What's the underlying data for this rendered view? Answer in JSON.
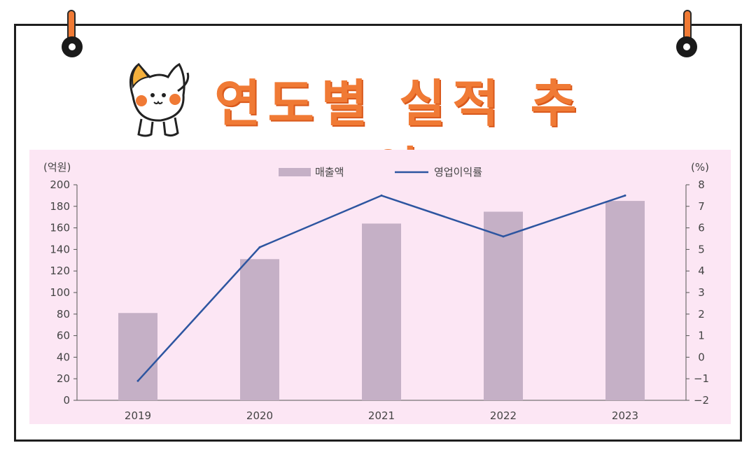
{
  "title": "연도별 실적 추이",
  "colors": {
    "accent": "#f07a35",
    "bar": "#c5b0c6",
    "line": "#2d55a0",
    "panel": "#fce6f4"
  },
  "chart_data": {
    "type": "bar",
    "categories": [
      "2019",
      "2020",
      "2021",
      "2022",
      "2023"
    ],
    "series": [
      {
        "name": "매출액",
        "type": "bar",
        "axis": "left",
        "values": [
          81,
          131,
          164,
          175,
          185
        ]
      },
      {
        "name": "영업이익률",
        "type": "line",
        "axis": "right",
        "values": [
          -1.1,
          5.1,
          7.5,
          5.6,
          7.5
        ]
      }
    ],
    "ylabel_left": "(억원)",
    "ylabel_right": "(%)",
    "ylim_left": [
      0,
      200
    ],
    "ylim_right": [
      -2,
      8
    ],
    "yticks_left": [
      "0",
      "20",
      "40",
      "60",
      "80",
      "100",
      "120",
      "140",
      "160",
      "180",
      "200"
    ],
    "yticks_right": [
      "−2",
      "−1",
      "0",
      "1",
      "2",
      "3",
      "4",
      "5",
      "6",
      "7",
      "8"
    ],
    "legend_position": "top-center",
    "grid": false
  }
}
